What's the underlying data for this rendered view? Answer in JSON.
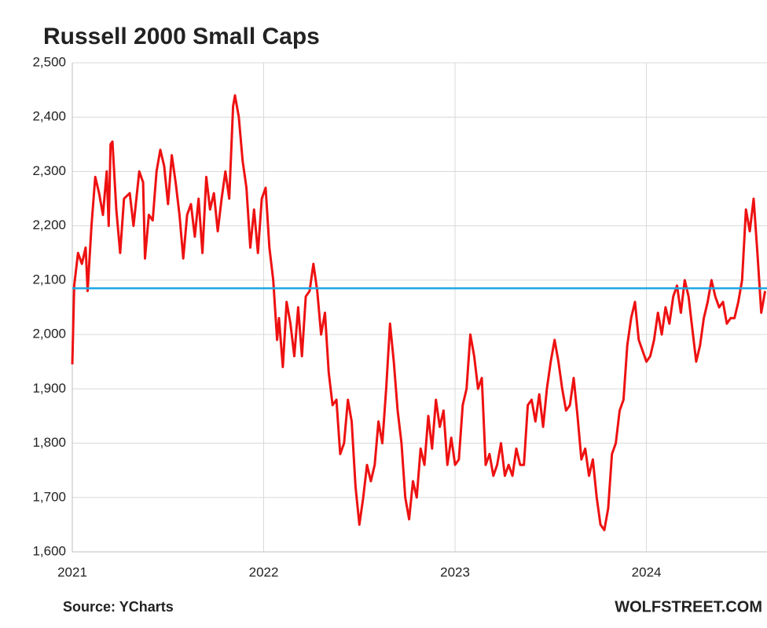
{
  "chart_data": {
    "type": "line",
    "title": "Russell 2000 Small Caps",
    "source": "Source: YCharts",
    "credit": "WOLFSTREET.COM",
    "x": [
      2021.0,
      2021.01,
      2021.03,
      2021.05,
      2021.07,
      2021.08,
      2021.1,
      2021.12,
      2021.14,
      2021.16,
      2021.18,
      2021.19,
      2021.2,
      2021.21,
      2021.23,
      2021.25,
      2021.27,
      2021.3,
      2021.32,
      2021.35,
      2021.37,
      2021.38,
      2021.4,
      2021.42,
      2021.44,
      2021.46,
      2021.48,
      2021.5,
      2021.52,
      2021.54,
      2021.56,
      2021.58,
      2021.6,
      2021.62,
      2021.64,
      2021.66,
      2021.68,
      2021.7,
      2021.72,
      2021.74,
      2021.76,
      2021.78,
      2021.8,
      2021.82,
      2021.84,
      2021.85,
      2021.87,
      2021.89,
      2021.91,
      2021.93,
      2021.95,
      2021.97,
      2021.99,
      2022.01,
      2022.03,
      2022.05,
      2022.07,
      2022.08,
      2022.1,
      2022.12,
      2022.14,
      2022.16,
      2022.18,
      2022.2,
      2022.22,
      2022.24,
      2022.26,
      2022.28,
      2022.3,
      2022.32,
      2022.34,
      2022.36,
      2022.38,
      2022.4,
      2022.42,
      2022.44,
      2022.46,
      2022.48,
      2022.5,
      2022.52,
      2022.54,
      2022.56,
      2022.58,
      2022.6,
      2022.62,
      2022.64,
      2022.66,
      2022.68,
      2022.7,
      2022.72,
      2022.74,
      2022.76,
      2022.78,
      2022.8,
      2022.82,
      2022.84,
      2022.86,
      2022.88,
      2022.9,
      2022.92,
      2022.94,
      2022.96,
      2022.98,
      2023.0,
      2023.02,
      2023.04,
      2023.06,
      2023.08,
      2023.1,
      2023.12,
      2023.14,
      2023.16,
      2023.18,
      2023.2,
      2023.22,
      2023.24,
      2023.26,
      2023.28,
      2023.3,
      2023.32,
      2023.34,
      2023.36,
      2023.38,
      2023.4,
      2023.42,
      2023.44,
      2023.46,
      2023.48,
      2023.5,
      2023.52,
      2023.54,
      2023.56,
      2023.58,
      2023.6,
      2023.62,
      2023.64,
      2023.66,
      2023.68,
      2023.7,
      2023.72,
      2023.74,
      2023.76,
      2023.78,
      2023.8,
      2023.82,
      2023.84,
      2023.86,
      2023.88,
      2023.9,
      2023.92,
      2023.94,
      2023.96,
      2023.98,
      2024.0,
      2024.02,
      2024.04,
      2024.06,
      2024.08,
      2024.1,
      2024.12,
      2024.14,
      2024.16,
      2024.18,
      2024.2,
      2024.22,
      2024.24,
      2024.26,
      2024.28,
      2024.3,
      2024.32,
      2024.34,
      2024.36,
      2024.38,
      2024.4,
      2024.42,
      2024.44,
      2024.46,
      2024.48,
      2024.5,
      2024.52,
      2024.54,
      2024.56,
      2024.58,
      2024.6,
      2024.62
    ],
    "series": [
      {
        "color": "#ee1111",
        "values": [
          1945,
          2090,
          2150,
          2130,
          2160,
          2080,
          2200,
          2290,
          2260,
          2220,
          2300,
          2200,
          2350,
          2355,
          2230,
          2150,
          2250,
          2260,
          2200,
          2300,
          2280,
          2140,
          2220,
          2210,
          2300,
          2340,
          2310,
          2240,
          2330,
          2280,
          2220,
          2140,
          2220,
          2240,
          2180,
          2250,
          2150,
          2290,
          2230,
          2260,
          2190,
          2250,
          2300,
          2250,
          2420,
          2440,
          2400,
          2320,
          2270,
          2160,
          2230,
          2150,
          2250,
          2270,
          2160,
          2100,
          1990,
          2030,
          1940,
          2060,
          2020,
          1960,
          2050,
          1960,
          2070,
          2080,
          2130,
          2080,
          2000,
          2040,
          1930,
          1870,
          1880,
          1780,
          1800,
          1880,
          1840,
          1720,
          1650,
          1700,
          1760,
          1730,
          1760,
          1840,
          1800,
          1900,
          2020,
          1950,
          1860,
          1800,
          1700,
          1660,
          1730,
          1700,
          1790,
          1760,
          1850,
          1790,
          1880,
          1830,
          1860,
          1760,
          1810,
          1760,
          1770,
          1870,
          1900,
          2000,
          1960,
          1900,
          1920,
          1760,
          1780,
          1740,
          1760,
          1800,
          1740,
          1760,
          1740,
          1790,
          1760,
          1760,
          1870,
          1880,
          1840,
          1890,
          1830,
          1900,
          1950,
          1990,
          1950,
          1900,
          1860,
          1870,
          1920,
          1850,
          1770,
          1790,
          1740,
          1770,
          1700,
          1650,
          1640,
          1680,
          1780,
          1800,
          1860,
          1880,
          1980,
          2030,
          2060,
          1990,
          1970,
          1950,
          1960,
          1990,
          2040,
          2000,
          2050,
          2020,
          2070,
          2090,
          2040,
          2100,
          2070,
          2010,
          1950,
          1980,
          2030,
          2060,
          2100,
          2070,
          2050,
          2060,
          2020,
          2030,
          2030,
          2060,
          2100,
          2230,
          2190,
          2250,
          2150,
          2040,
          2080
        ]
      }
    ],
    "hline": {
      "value": 2085,
      "color": "#1ea7e4"
    },
    "xlim": [
      2021,
      2024.63
    ],
    "xticks": [
      2021,
      2022,
      2023,
      2024
    ],
    "ylim": [
      1600,
      2500
    ],
    "yticks": [
      {
        "value": 1600,
        "label": "1,600"
      },
      {
        "value": 1700,
        "label": "1,700"
      },
      {
        "value": 1800,
        "label": "1,800"
      },
      {
        "value": 1900,
        "label": "1,900"
      },
      {
        "value": 2000,
        "label": "2,000"
      },
      {
        "value": 2100,
        "label": "2,100"
      },
      {
        "value": 2200,
        "label": "2,200"
      },
      {
        "value": 2300,
        "label": "2,300"
      },
      {
        "value": 2400,
        "label": "2,400"
      },
      {
        "value": 2500,
        "label": "2,500"
      }
    ],
    "grid": true
  }
}
